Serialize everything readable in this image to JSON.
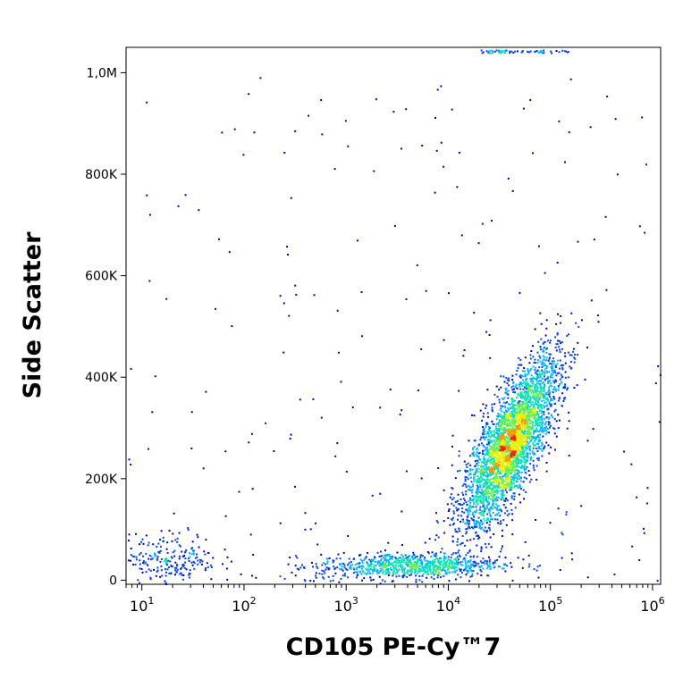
{
  "chart_data": {
    "type": "scatter",
    "subtype": "density-dot-plot",
    "title": "",
    "xlabel": "CD105 PE-Cy™7",
    "ylabel": "Side Scatter",
    "x_scale": "log",
    "xlim": [
      7,
      1200000
    ],
    "ylim": [
      -8000,
      1050000
    ],
    "x_ticks": [
      {
        "value": 10,
        "base": "10",
        "exp": "1"
      },
      {
        "value": 100,
        "base": "10",
        "exp": "2"
      },
      {
        "value": 1000,
        "base": "10",
        "exp": "3"
      },
      {
        "value": 10000,
        "base": "10",
        "exp": "4"
      },
      {
        "value": 100000,
        "base": "10",
        "exp": "5"
      },
      {
        "value": 1000000,
        "base": "10",
        "exp": "6"
      }
    ],
    "y_ticks": [
      {
        "value": 0,
        "label": "0"
      },
      {
        "value": 200000,
        "label": "200K"
      },
      {
        "value": 400000,
        "label": "400K"
      },
      {
        "value": 600000,
        "label": "600K"
      },
      {
        "value": 800000,
        "label": "800K"
      },
      {
        "value": 1000000,
        "label": "1,0M"
      }
    ],
    "populations": [
      {
        "x_center": 40000,
        "y_center": 270000,
        "x_spread_log": 0.24,
        "y_spread": 120000,
        "tilt": 0.55,
        "density": 0.62
      },
      {
        "x_center": 4000,
        "y_center": 30000,
        "x_spread_log": 0.45,
        "y_spread": 14000,
        "tilt": 0.1,
        "density": 0.16
      },
      {
        "x_center": 20,
        "y_center": 45000,
        "x_spread_log": 0.22,
        "y_spread": 25000,
        "tilt": 0.0,
        "density": 0.04
      }
    ],
    "density_colors": [
      "#0000c8",
      "#0040ff",
      "#00b4ff",
      "#00e6b4",
      "#64f050",
      "#e6f000",
      "#ff9600",
      "#ff1e00"
    ],
    "grid": false,
    "legend": "none"
  }
}
